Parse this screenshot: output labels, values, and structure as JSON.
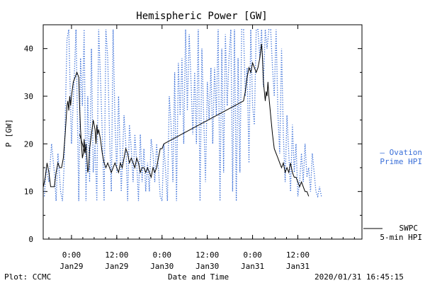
{
  "chart_data": {
    "type": "line",
    "title": "Hemispheric Power [GW]",
    "ylabel": "P [GW]",
    "xlabel": "Date and Time",
    "ylim": [
      0,
      45
    ],
    "xlim": [
      -0.3125,
      3.2083
    ],
    "yticks": [
      0,
      10,
      20,
      30,
      40
    ],
    "xticks": [
      {
        "x": 0.0,
        "time": "0:00",
        "date": "Jan29"
      },
      {
        "x": 0.5,
        "time": "12:00",
        "date": "Jan29"
      },
      {
        "x": 1.0,
        "time": "0:00",
        "date": "Jan30"
      },
      {
        "x": 1.5,
        "time": "12:00",
        "date": "Jan30"
      },
      {
        "x": 2.0,
        "time": "0:00",
        "date": "Jan31"
      },
      {
        "x": 2.5,
        "time": "12:00",
        "date": "Jan31"
      }
    ],
    "grid": false,
    "series": [
      {
        "name": "Ovation Prime HPI",
        "color": "#3a6fd8",
        "style": "dotted",
        "points": [
          [
            -0.3,
            9
          ],
          [
            -0.28,
            15
          ],
          [
            -0.25,
            12
          ],
          [
            -0.22,
            20
          ],
          [
            -0.19,
            14
          ],
          [
            -0.17,
            8
          ],
          [
            -0.15,
            18
          ],
          [
            -0.12,
            10
          ],
          [
            -0.1,
            8
          ],
          [
            -0.08,
            16
          ],
          [
            -0.05,
            42
          ],
          [
            -0.03,
            44
          ],
          [
            0.0,
            20
          ],
          [
            0.03,
            34
          ],
          [
            0.05,
            44
          ],
          [
            0.08,
            8
          ],
          [
            0.1,
            38
          ],
          [
            0.12,
            28
          ],
          [
            0.14,
            44
          ],
          [
            0.16,
            8
          ],
          [
            0.18,
            30
          ],
          [
            0.2,
            12
          ],
          [
            0.22,
            40
          ],
          [
            0.24,
            14
          ],
          [
            0.26,
            20
          ],
          [
            0.28,
            8
          ],
          [
            0.3,
            44
          ],
          [
            0.32,
            34
          ],
          [
            0.34,
            22
          ],
          [
            0.36,
            8
          ],
          [
            0.38,
            44
          ],
          [
            0.4,
            38
          ],
          [
            0.42,
            22
          ],
          [
            0.44,
            10
          ],
          [
            0.46,
            44
          ],
          [
            0.48,
            25
          ],
          [
            0.5,
            14
          ],
          [
            0.52,
            30
          ],
          [
            0.55,
            10
          ],
          [
            0.58,
            26
          ],
          [
            0.6,
            20
          ],
          [
            0.62,
            8
          ],
          [
            0.64,
            24
          ],
          [
            0.66,
            19
          ],
          [
            0.68,
            12
          ],
          [
            0.7,
            22
          ],
          [
            0.72,
            16
          ],
          [
            0.74,
            8
          ],
          [
            0.76,
            22
          ],
          [
            0.78,
            12
          ],
          [
            0.8,
            19
          ],
          [
            0.82,
            10
          ],
          [
            0.84,
            16
          ],
          [
            0.86,
            10
          ],
          [
            0.88,
            21
          ],
          [
            0.9,
            18
          ],
          [
            0.92,
            12
          ],
          [
            0.94,
            20
          ],
          [
            0.96,
            15
          ],
          [
            0.98,
            9
          ],
          [
            1.0,
            8
          ],
          [
            1.02,
            20
          ],
          [
            1.04,
            14
          ],
          [
            1.06,
            8
          ],
          [
            1.08,
            30
          ],
          [
            1.1,
            24
          ],
          [
            1.12,
            12
          ],
          [
            1.14,
            35
          ],
          [
            1.16,
            8
          ],
          [
            1.18,
            37
          ],
          [
            1.2,
            26
          ],
          [
            1.22,
            38
          ],
          [
            1.24,
            20
          ],
          [
            1.26,
            44
          ],
          [
            1.28,
            27
          ],
          [
            1.3,
            43
          ],
          [
            1.32,
            33
          ],
          [
            1.34,
            22
          ],
          [
            1.36,
            35
          ],
          [
            1.38,
            20
          ],
          [
            1.4,
            44
          ],
          [
            1.42,
            8
          ],
          [
            1.44,
            40
          ],
          [
            1.46,
            26
          ],
          [
            1.48,
            12
          ],
          [
            1.5,
            33
          ],
          [
            1.52,
            25
          ],
          [
            1.54,
            36
          ],
          [
            1.56,
            20
          ],
          [
            1.58,
            36
          ],
          [
            1.6,
            26
          ],
          [
            1.62,
            44
          ],
          [
            1.64,
            8
          ],
          [
            1.66,
            40
          ],
          [
            1.68,
            14
          ],
          [
            1.7,
            43
          ],
          [
            1.72,
            28
          ],
          [
            1.74,
            38
          ],
          [
            1.76,
            44
          ],
          [
            1.78,
            10
          ],
          [
            1.8,
            44
          ],
          [
            1.82,
            8
          ],
          [
            1.84,
            38
          ],
          [
            1.86,
            14
          ],
          [
            1.88,
            44
          ],
          [
            1.9,
            44
          ],
          [
            1.92,
            30
          ],
          [
            1.94,
            36
          ],
          [
            1.96,
            16
          ],
          [
            1.98,
            44
          ],
          [
            2.0,
            28
          ],
          [
            2.02,
            24
          ],
          [
            2.04,
            44
          ],
          [
            2.06,
            44
          ],
          [
            2.08,
            38
          ],
          [
            2.1,
            44
          ],
          [
            2.12,
            32
          ],
          [
            2.14,
            44
          ],
          [
            2.16,
            40
          ],
          [
            2.18,
            44
          ],
          [
            2.2,
            44
          ],
          [
            2.22,
            36
          ],
          [
            2.24,
            30
          ],
          [
            2.26,
            44
          ],
          [
            2.28,
            26
          ],
          [
            2.3,
            18
          ],
          [
            2.32,
            40
          ],
          [
            2.34,
            22
          ],
          [
            2.36,
            12
          ],
          [
            2.38,
            26
          ],
          [
            2.4,
            18
          ],
          [
            2.42,
            10
          ],
          [
            2.44,
            24
          ],
          [
            2.46,
            14
          ],
          [
            2.48,
            20
          ],
          [
            2.5,
            9
          ],
          [
            2.52,
            12
          ],
          [
            2.54,
            18
          ],
          [
            2.56,
            12
          ],
          [
            2.58,
            20
          ],
          [
            2.6,
            13
          ],
          [
            2.62,
            15
          ],
          [
            2.64,
            10
          ],
          [
            2.66,
            18
          ],
          [
            2.68,
            14
          ],
          [
            2.7,
            10
          ],
          [
            2.72,
            9
          ],
          [
            2.74,
            11
          ],
          [
            2.76,
            9
          ]
        ]
      },
      {
        "name": "SWPC 5-min HPI",
        "color": "#000000",
        "style": "solid",
        "points": [
          [
            -0.31,
            11
          ],
          [
            -0.29,
            13
          ],
          [
            -0.27,
            16
          ],
          [
            -0.25,
            14
          ],
          [
            -0.23,
            11
          ],
          [
            -0.21,
            11
          ],
          [
            -0.19,
            11
          ],
          [
            -0.17,
            14
          ],
          [
            -0.15,
            16
          ],
          [
            -0.13,
            15
          ],
          [
            -0.11,
            15
          ],
          [
            -0.09,
            17
          ],
          [
            -0.07,
            22
          ],
          [
            -0.05,
            28
          ],
          [
            -0.04,
            29
          ],
          [
            -0.03,
            27
          ],
          [
            -0.02,
            30
          ],
          [
            -0.01,
            28
          ],
          [
            0.0,
            30
          ],
          [
            0.02,
            33
          ],
          [
            0.04,
            34
          ],
          [
            0.06,
            35
          ],
          [
            0.08,
            34
          ],
          [
            0.09,
            28
          ],
          [
            0.1,
            23
          ],
          [
            0.11,
            20
          ],
          [
            0.12,
            17
          ],
          [
            0.13,
            18
          ],
          [
            0.14,
            21
          ],
          [
            0.15,
            18
          ],
          [
            0.16,
            20
          ],
          [
            0.17,
            17
          ],
          [
            0.18,
            14
          ],
          [
            0.19,
            15
          ],
          [
            0.2,
            19
          ],
          [
            0.22,
            22
          ],
          [
            0.24,
            25
          ],
          [
            0.26,
            23
          ],
          [
            0.27,
            20
          ],
          [
            0.28,
            24
          ],
          [
            0.29,
            22
          ],
          [
            0.3,
            23
          ],
          [
            0.32,
            21
          ],
          [
            0.34,
            18
          ],
          [
            0.36,
            16
          ],
          [
            0.38,
            15
          ],
          [
            0.4,
            16
          ],
          [
            0.42,
            15
          ],
          [
            0.44,
            14
          ],
          [
            0.46,
            15
          ],
          [
            0.48,
            16
          ],
          [
            0.5,
            15
          ],
          [
            0.52,
            14
          ],
          [
            0.54,
            16
          ],
          [
            0.56,
            15
          ],
          [
            0.58,
            17
          ],
          [
            0.6,
            19
          ],
          [
            0.62,
            18
          ],
          [
            0.64,
            16
          ],
          [
            0.66,
            17
          ],
          [
            0.68,
            16
          ],
          [
            0.7,
            15
          ],
          [
            0.72,
            17
          ],
          [
            0.74,
            16
          ],
          [
            0.76,
            14
          ],
          [
            0.78,
            15
          ],
          [
            0.8,
            15
          ],
          [
            0.82,
            14
          ],
          [
            0.84,
            15
          ],
          [
            0.86,
            14
          ],
          [
            0.88,
            13
          ],
          [
            0.9,
            15
          ],
          [
            0.92,
            14
          ],
          [
            0.94,
            15
          ],
          [
            0.96,
            17
          ],
          [
            0.98,
            19
          ],
          [
            1.0,
            19
          ],
          [
            1.02,
            20
          ],
          [
            1.9,
            29
          ],
          [
            1.92,
            31
          ],
          [
            1.94,
            34
          ],
          [
            1.96,
            36
          ],
          [
            1.98,
            35
          ],
          [
            2.0,
            37
          ],
          [
            2.02,
            36
          ],
          [
            2.04,
            35
          ],
          [
            2.06,
            36
          ],
          [
            2.08,
            38
          ],
          [
            2.1,
            41
          ],
          [
            2.11,
            38
          ],
          [
            2.12,
            33
          ],
          [
            2.13,
            31
          ],
          [
            2.14,
            29
          ],
          [
            2.15,
            31
          ],
          [
            2.16,
            30
          ],
          [
            2.17,
            33
          ],
          [
            2.18,
            30
          ],
          [
            2.2,
            26
          ],
          [
            2.22,
            22
          ],
          [
            2.24,
            19
          ],
          [
            2.26,
            18
          ],
          [
            2.28,
            17
          ],
          [
            2.3,
            16
          ],
          [
            2.32,
            15
          ],
          [
            2.34,
            16
          ],
          [
            2.36,
            14
          ],
          [
            2.38,
            15
          ],
          [
            2.4,
            14
          ],
          [
            2.42,
            16
          ],
          [
            2.44,
            14
          ],
          [
            2.46,
            13
          ],
          [
            2.48,
            13
          ],
          [
            2.5,
            12
          ],
          [
            2.52,
            11
          ],
          [
            2.54,
            12
          ],
          [
            2.56,
            11
          ],
          [
            2.58,
            10
          ],
          [
            2.6,
            10
          ],
          [
            2.62,
            9
          ]
        ]
      },
      {
        "name": "SWPC 5-min HPI gap segment",
        "color": "#000000",
        "style": "solid",
        "points": [
          [
            0.09,
            22
          ],
          [
            0.12,
            20
          ],
          [
            0.15,
            18
          ]
        ]
      }
    ],
    "legend": [
      {
        "label_line1": "— Ovation",
        "label_line2": "Prime HPI",
        "color": "#3a6fd8",
        "position": "right-middle"
      },
      {
        "label_line1": "SWPC",
        "label_line2": "5-min HPI",
        "color": "#000000",
        "position": "right-bottom"
      }
    ]
  },
  "footer": {
    "left": "Plot: CCMC",
    "center": "Date and Time",
    "right": "2020/01/31 16:45:15"
  }
}
